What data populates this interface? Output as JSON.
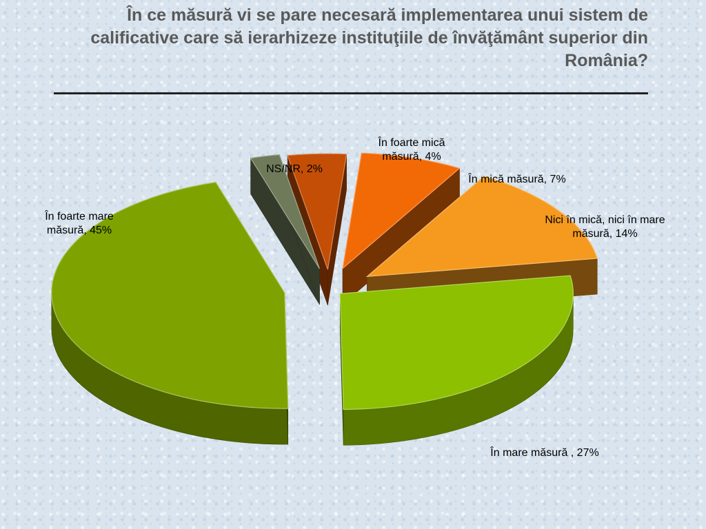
{
  "title": "În ce măsură vi se pare necesară implementarea unui sistem de calificative care să ierarhizeze instituţiile de învăţământ superior din România?",
  "chart_data": {
    "type": "pie",
    "style": "3d-exploded",
    "legend": "none",
    "slices": [
      {
        "name": "NS/NR",
        "value": 2,
        "color": "#6f7a5a",
        "label": "NS/NR, 2%"
      },
      {
        "name": "În foarte mică măsură",
        "value": 4,
        "color": "#c44e06",
        "label": "În foarte mică măsură, 4%"
      },
      {
        "name": "În mică măsură",
        "value": 7,
        "color": "#f26a06",
        "label": "În mică măsură, 7%"
      },
      {
        "name": "Nici în mică, nici în mare măsură",
        "value": 14,
        "color": "#f59a1e",
        "label": "Nici în mică, nici în mare măsură, 14%"
      },
      {
        "name": "În mare măsură",
        "value": 27,
        "color": "#8cc000",
        "label": "În mare măsură , 27%"
      },
      {
        "name": "În foarte mare măsură",
        "value": 45,
        "color": "#7ea300",
        "label": "În foarte mare măsură, 45%"
      }
    ]
  }
}
